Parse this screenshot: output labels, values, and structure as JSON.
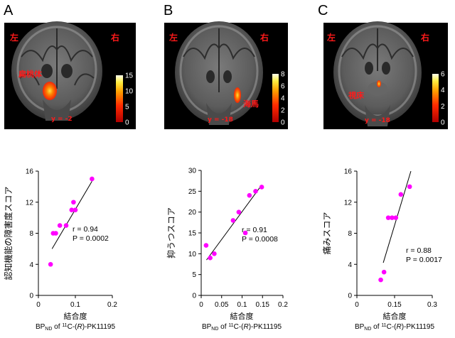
{
  "panels": [
    {
      "letter": "A",
      "mri": {
        "left_label": "左",
        "right_label": "右",
        "region_label": "扁桃体",
        "slice_label": "y = -2",
        "colorbar_ticks": [
          "15",
          "10",
          "5",
          "0"
        ],
        "colorbar_max": 15
      }
    },
    {
      "letter": "B",
      "mri": {
        "left_label": "左",
        "right_label": "右",
        "region_label": "海馬",
        "slice_label": "y = -18",
        "colorbar_ticks": [
          "8",
          "6",
          "4",
          "2",
          "0"
        ],
        "colorbar_max": 8
      }
    },
    {
      "letter": "C",
      "mri": {
        "left_label": "左",
        "right_label": "右",
        "region_label": "視床",
        "slice_label": "y = -18",
        "colorbar_ticks": [
          "6",
          "4",
          "2",
          "0"
        ],
        "colorbar_max": 6
      }
    }
  ],
  "colors": {
    "point": "#ff00ff",
    "line": "#000000",
    "heat_low": "#cc0000",
    "heat_high": "#ffffee"
  },
  "chart_data": [
    {
      "type": "scatter",
      "xlabel": "結合度",
      "xlabel_sub": "BPND of 11C-(R)-PK11195",
      "ylabel": "認知機能の障害度スコア",
      "xlim": [
        0,
        0.2
      ],
      "ylim": [
        0,
        16
      ],
      "xticks": [
        0,
        0.1,
        0.2
      ],
      "xtick_labels": [
        "0",
        "0.1",
        "0.2"
      ],
      "yticks": [
        0,
        4,
        8,
        12,
        16
      ],
      "ytick_labels": [
        "0",
        "4",
        "8",
        "12",
        "16"
      ],
      "points": [
        [
          0.033,
          4
        ],
        [
          0.04,
          8
        ],
        [
          0.047,
          8
        ],
        [
          0.058,
          9
        ],
        [
          0.075,
          9
        ],
        [
          0.09,
          11
        ],
        [
          0.095,
          12
        ],
        [
          0.1,
          11
        ],
        [
          0.145,
          15
        ]
      ],
      "fit": [
        [
          0.037,
          6.0
        ],
        [
          0.145,
          14.7
        ]
      ],
      "r_text": "r = 0.94",
      "p_text": "P = 0.0002"
    },
    {
      "type": "scatter",
      "xlabel": "結合度",
      "xlabel_sub": "BPND of 11C-(R)-PK11195",
      "ylabel": "抑うつスコア",
      "xlim": [
        0,
        0.2
      ],
      "ylim": [
        0,
        30
      ],
      "xticks": [
        0,
        0.05,
        0.1,
        0.15,
        0.2
      ],
      "xtick_labels": [
        "0",
        "0.05",
        "0.1",
        "0.15",
        "0.2"
      ],
      "yticks": [
        0,
        5,
        10,
        15,
        20,
        25,
        30
      ],
      "ytick_labels": [
        "0",
        "5",
        "10",
        "15",
        "20",
        "25",
        "30"
      ],
      "points": [
        [
          0.012,
          12
        ],
        [
          0.022,
          9
        ],
        [
          0.032,
          10
        ],
        [
          0.078,
          18
        ],
        [
          0.092,
          20
        ],
        [
          0.108,
          15
        ],
        [
          0.118,
          24
        ],
        [
          0.133,
          25
        ],
        [
          0.148,
          26
        ]
      ],
      "fit": [
        [
          0.013,
          8.5
        ],
        [
          0.148,
          26.5
        ]
      ],
      "r_text": "r = 0.91",
      "p_text": "P = 0.0008"
    },
    {
      "type": "scatter",
      "xlabel": "結合度",
      "xlabel_sub": "BPND of 11C-(R)-PK11195",
      "ylabel": "痛みスコア",
      "xlim": [
        0,
        0.3
      ],
      "ylim": [
        0,
        16
      ],
      "xticks": [
        0,
        0.15,
        0.3
      ],
      "xtick_labels": [
        "0",
        "0.15",
        "0.3"
      ],
      "yticks": [
        0,
        4,
        8,
        12,
        16
      ],
      "ytick_labels": [
        "0",
        "4",
        "8",
        "12",
        "16"
      ],
      "points": [
        [
          0.095,
          2
        ],
        [
          0.108,
          3
        ],
        [
          0.125,
          10
        ],
        [
          0.14,
          10
        ],
        [
          0.155,
          10
        ],
        [
          0.175,
          13
        ],
        [
          0.21,
          14
        ]
      ],
      "fit": [
        [
          0.105,
          4.2
        ],
        [
          0.215,
          16
        ]
      ],
      "r_text": "r = 0.88",
      "p_text": "P = 0.0017"
    }
  ]
}
